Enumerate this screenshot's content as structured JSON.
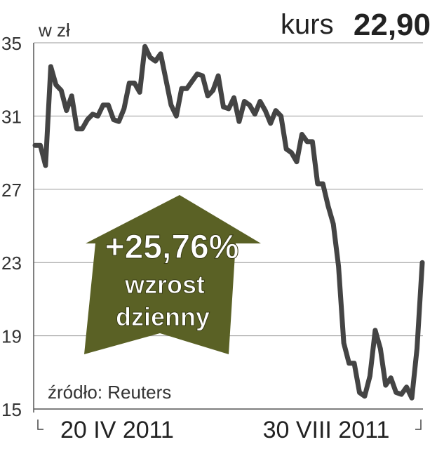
{
  "chart_data": {
    "type": "line",
    "title": "",
    "unit_label": "w zł",
    "ylim": [
      15,
      35
    ],
    "yticks": [
      35,
      31,
      27,
      23,
      19,
      15
    ],
    "grid": true,
    "xtick_labels": [
      "20 IV 2011",
      "30 VIII 2011"
    ],
    "line_color": "#444444",
    "values": [
      29.4,
      29.4,
      28.3,
      33.7,
      32.7,
      32.4,
      31.3,
      32.1,
      30.3,
      30.3,
      30.8,
      31.1,
      31.0,
      31.6,
      31.6,
      30.8,
      30.7,
      31.4,
      32.8,
      32.8,
      32.3,
      34.8,
      34.2,
      34.0,
      34.4,
      33.0,
      31.6,
      31.0,
      32.5,
      32.5,
      32.9,
      33.3,
      33.2,
      32.1,
      32.4,
      33.2,
      31.5,
      31.4,
      32.0,
      30.7,
      31.8,
      31.6,
      31.1,
      31.8,
      31.3,
      30.6,
      31.3,
      31.0,
      29.2,
      29.0,
      28.5,
      30.0,
      29.6,
      29.6,
      27.3,
      27.3,
      26.1,
      25.1,
      22.8,
      18.6,
      17.5,
      17.5,
      15.9,
      15.7,
      16.8,
      19.3,
      18.3,
      16.3,
      16.7,
      15.9,
      15.8,
      16.2,
      15.6,
      18.3,
      23.0
    ]
  },
  "header": {
    "kurs_label": "kurs",
    "kurs_value": "22,90"
  },
  "badge": {
    "change": "+25,76%",
    "line1": "wzrost",
    "line2": "dzienny",
    "color": "#5a6125"
  },
  "source": "źródło: Reuters"
}
